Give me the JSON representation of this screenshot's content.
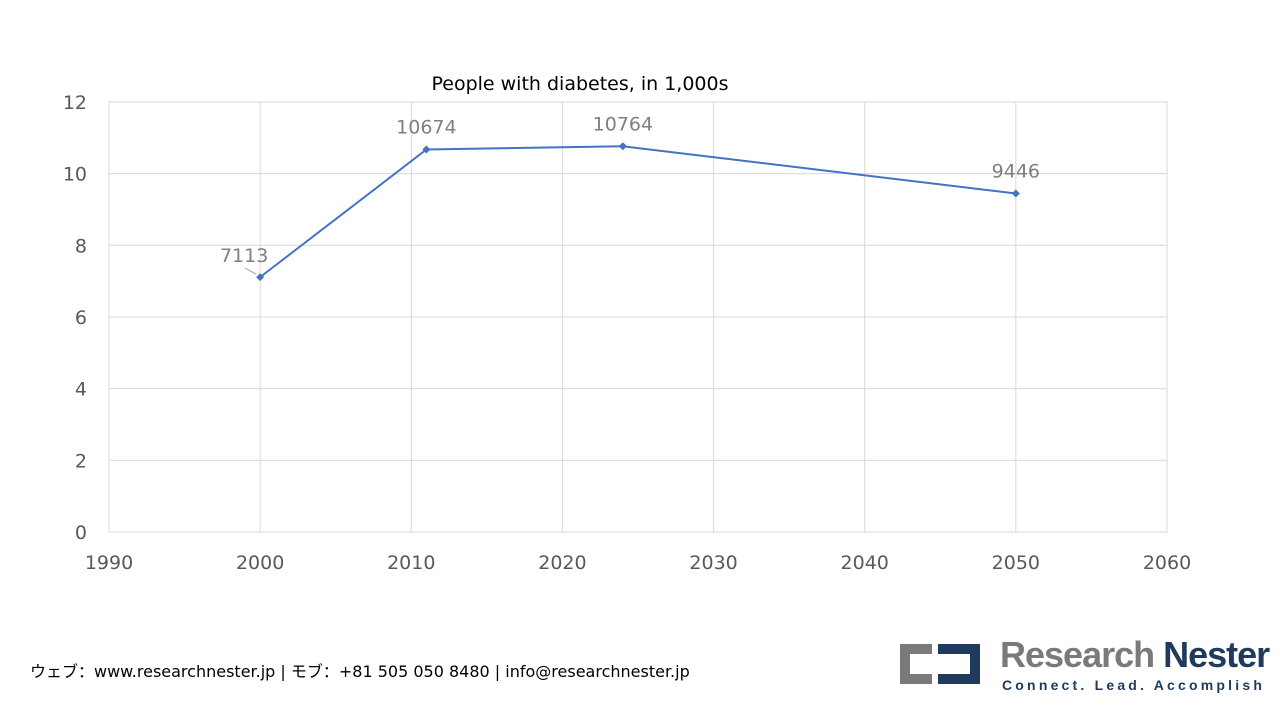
{
  "chart_data": {
    "type": "scatter",
    "title": "People with diabetes, in 1,000s",
    "xlim": [
      1990,
      2060
    ],
    "ylim": [
      0,
      12
    ],
    "xticks": [
      1990,
      2000,
      2010,
      2020,
      2030,
      2040,
      2050,
      2060
    ],
    "yticks": [
      0,
      2,
      4,
      6,
      8,
      10,
      12
    ],
    "grid": true,
    "series": [
      {
        "points": [
          {
            "x": 2000,
            "y": 7.113,
            "label": "7113"
          },
          {
            "x": 2011,
            "y": 10.674,
            "label": "10674"
          },
          {
            "x": 2024,
            "y": 10.764,
            "label": "10764"
          },
          {
            "x": 2050,
            "y": 9.446,
            "label": "9446"
          }
        ],
        "color": "#4472c4"
      }
    ]
  },
  "footer": {
    "contact": "ウェブ：www.researchnester.jp | モブ：+81 505 050 8480 | info@researchnester.jp"
  },
  "logo": {
    "research": "Research",
    "nester": "Nester",
    "tagline": "Connect. Lead. Accomplish"
  }
}
